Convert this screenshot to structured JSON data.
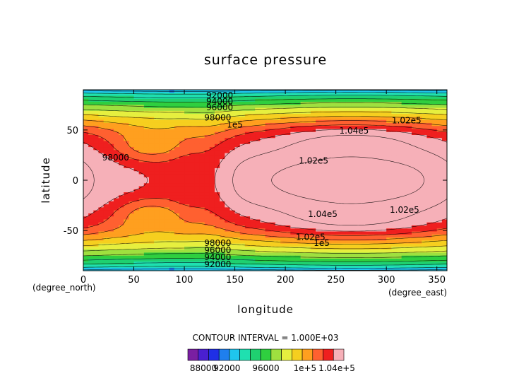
{
  "chart_data": {
    "type": "heatmap",
    "title": "surface pressure",
    "xlabel": "longitude",
    "ylabel": "latitude",
    "x_unit": "(degree_east)",
    "y_unit": "(degree_north)",
    "xlim": [
      0,
      360
    ],
    "ylim": [
      -90,
      90
    ],
    "x_ticks": [
      0,
      50,
      100,
      150,
      200,
      250,
      300,
      350
    ],
    "y_ticks": [
      -50,
      0,
      50
    ],
    "contour_interval_text": "CONTOUR INTERVAL = 1.000E+03",
    "contour_labels": [
      {
        "text": "92000",
        "lon": 135,
        "lat": 84
      },
      {
        "text": "94000",
        "lon": 135,
        "lat": 78
      },
      {
        "text": "96000",
        "lon": 135,
        "lat": 72
      },
      {
        "text": "98000",
        "lon": 133,
        "lat": 62
      },
      {
        "text": "1e5",
        "lon": 150,
        "lat": 55
      },
      {
        "text": "98000",
        "lon": 32,
        "lat": 22
      },
      {
        "text": "1.04e5",
        "lon": 268,
        "lat": 49
      },
      {
        "text": "1.02e5",
        "lon": 320,
        "lat": 59
      },
      {
        "text": "1.02e5",
        "lon": 228,
        "lat": 19
      },
      {
        "text": "1.02e5",
        "lon": 318,
        "lat": -30
      },
      {
        "text": "1.04e5",
        "lon": 237,
        "lat": -34
      },
      {
        "text": "1.02e5",
        "lon": 225,
        "lat": -57
      },
      {
        "text": "1e5",
        "lon": 236,
        "lat": -63
      },
      {
        "text": "98000",
        "lon": 133,
        "lat": -63
      },
      {
        "text": "96000",
        "lon": 133,
        "lat": -70
      },
      {
        "text": "94000",
        "lon": 133,
        "lat": -77
      },
      {
        "text": "92000",
        "lon": 133,
        "lat": -84
      }
    ],
    "colorbar": {
      "colors": [
        "#7a1fa2",
        "#4a1fd0",
        "#1f2fe6",
        "#1f7fee",
        "#1fc6ee",
        "#1fe0b0",
        "#1fd070",
        "#2fcf3f",
        "#9fe03f",
        "#e6ef3f",
        "#f6cf1f",
        "#ff9f1f",
        "#ff6030",
        "#ef1f1f",
        "#f6b0b8"
      ],
      "labels": [
        "88000",
        "92000",
        "96000",
        "1e+5",
        "1.04e+5"
      ]
    }
  }
}
